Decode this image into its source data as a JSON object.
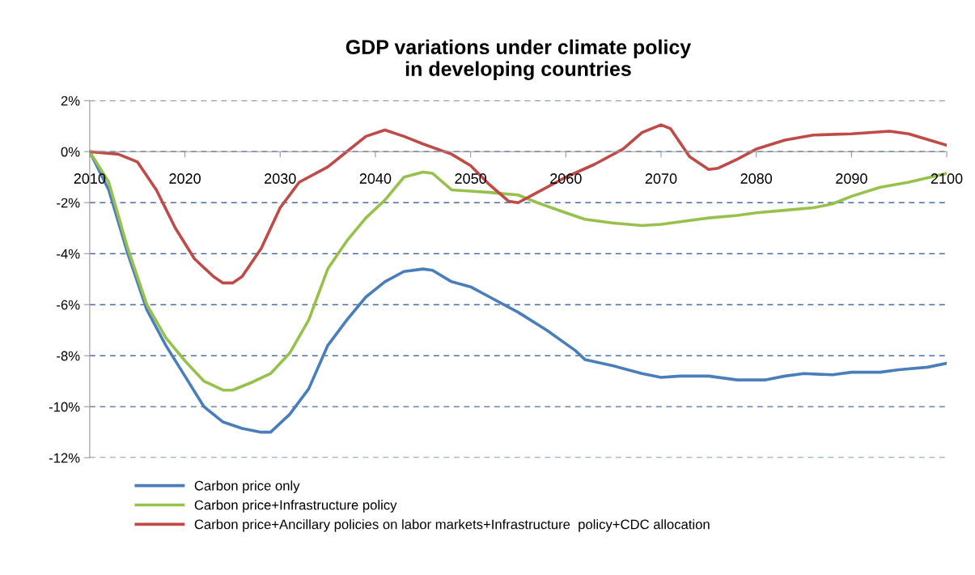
{
  "chart_data": {
    "type": "line",
    "title": "GDP variations under climate policy\nin developing countries",
    "xlim": [
      2010,
      2100
    ],
    "xticks": [
      2010,
      2020,
      2030,
      2040,
      2050,
      2060,
      2070,
      2080,
      2090,
      2100
    ],
    "ylim": [
      -12,
      2
    ],
    "yticks": [
      {
        "value": -12,
        "label": "-12%"
      },
      {
        "value": -10,
        "label": "-10%"
      },
      {
        "value": -8,
        "label": "-8%"
      },
      {
        "value": -6,
        "label": "-6%"
      },
      {
        "value": -4,
        "label": "-4%"
      },
      {
        "value": -2,
        "label": "-2%"
      },
      {
        "value": 0,
        "label": "0%"
      },
      {
        "value": 2,
        "label": "2%"
      }
    ],
    "grid": "y",
    "legend": "bottom",
    "marker": "none",
    "line_style": "solid",
    "series": [
      {
        "name": "Carbon price only",
        "color": "#4a7ebb",
        "x": [
          2010,
          2012,
          2014,
          2016,
          2018,
          2020,
          2022,
          2024,
          2026,
          2028,
          2029,
          2031,
          2033,
          2035,
          2037,
          2039,
          2041,
          2043,
          2045,
          2046,
          2048,
          2050,
          2052,
          2055,
          2058,
          2061,
          2062,
          2065,
          2068,
          2070,
          2072,
          2075,
          2078,
          2081,
          2083,
          2085,
          2088,
          2090,
          2093,
          2095,
          2098,
          2100
        ],
        "values": [
          0,
          -1.5,
          -4,
          -6.2,
          -7.6,
          -8.8,
          -10,
          -10.6,
          -10.85,
          -11,
          -11,
          -10.3,
          -9.3,
          -7.6,
          -6.6,
          -5.7,
          -5.1,
          -4.7,
          -4.6,
          -4.65,
          -5.1,
          -5.3,
          -5.7,
          -6.3,
          -7,
          -7.8,
          -8.15,
          -8.4,
          -8.7,
          -8.85,
          -8.8,
          -8.8,
          -8.95,
          -8.95,
          -8.8,
          -8.7,
          -8.75,
          -8.65,
          -8.65,
          -8.55,
          -8.45,
          -8.3
        ]
      },
      {
        "name": "Carbon price+Infrastructure policy",
        "color": "#98c04c",
        "x": [
          2010,
          2012,
          2014,
          2016,
          2018,
          2020,
          2022,
          2024,
          2025,
          2027,
          2029,
          2031,
          2033,
          2035,
          2037,
          2039,
          2041,
          2043,
          2045,
          2046,
          2048,
          2050,
          2052,
          2055,
          2057,
          2060,
          2062,
          2065,
          2068,
          2070,
          2073,
          2075,
          2078,
          2080,
          2083,
          2086,
          2088,
          2090,
          2093,
          2096,
          2100
        ],
        "values": [
          0,
          -1.2,
          -3.8,
          -6,
          -7.3,
          -8.2,
          -9,
          -9.35,
          -9.35,
          -9.05,
          -8.7,
          -7.9,
          -6.6,
          -4.6,
          -3.5,
          -2.6,
          -1.9,
          -1.0,
          -0.8,
          -0.85,
          -1.5,
          -1.55,
          -1.6,
          -1.7,
          -2.0,
          -2.4,
          -2.65,
          -2.8,
          -2.9,
          -2.85,
          -2.7,
          -2.6,
          -2.5,
          -2.4,
          -2.3,
          -2.2,
          -2.05,
          -1.75,
          -1.4,
          -1.2,
          -0.85
        ]
      },
      {
        "name": "Carbon price+Ancillary policies on labor markets+Infrastructure  policy+CDC allocation",
        "color": "#be4b48",
        "x": [
          2010,
          2013,
          2015,
          2017,
          2019,
          2021,
          2023,
          2024,
          2025,
          2026,
          2028,
          2030,
          2032,
          2035,
          2037,
          2039,
          2041,
          2043,
          2045,
          2048,
          2050,
          2052,
          2054,
          2055,
          2057,
          2060,
          2063,
          2066,
          2068,
          2070,
          2071,
          2073,
          2075,
          2076,
          2078,
          2080,
          2083,
          2086,
          2090,
          2094,
          2096,
          2100
        ],
        "values": [
          0,
          -0.1,
          -0.4,
          -1.5,
          -3,
          -4.2,
          -4.9,
          -5.15,
          -5.15,
          -4.9,
          -3.8,
          -2.2,
          -1.2,
          -0.6,
          0,
          0.6,
          0.85,
          0.6,
          0.3,
          -0.1,
          -0.55,
          -1.3,
          -1.95,
          -2.0,
          -1.6,
          -1.0,
          -0.5,
          0.1,
          0.75,
          1.05,
          0.9,
          -0.2,
          -0.7,
          -0.65,
          -0.3,
          0.1,
          0.45,
          0.65,
          0.7,
          0.8,
          0.7,
          0.25
        ]
      }
    ]
  }
}
